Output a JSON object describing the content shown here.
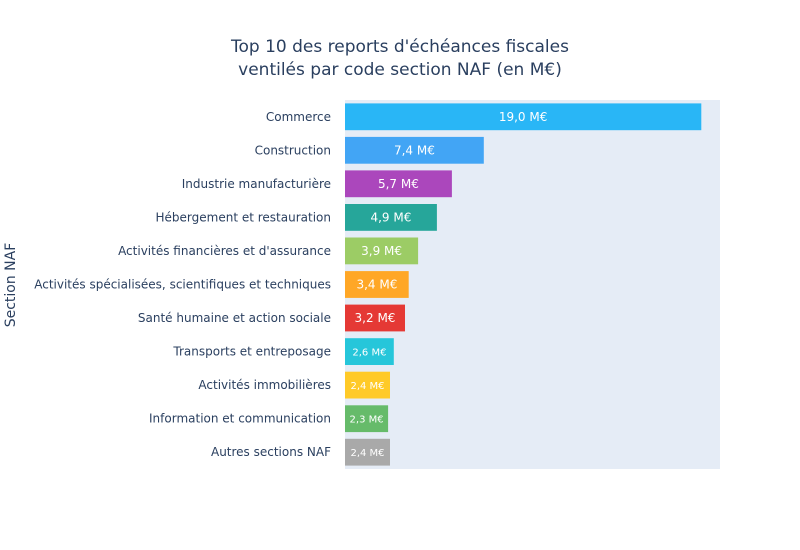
{
  "chart_data": {
    "type": "bar",
    "orientation": "horizontal",
    "title_lines": [
      "Top 10 des reports d'échéances fiscales",
      "ventilés par code section NAF (en M€)"
    ],
    "ylabel": "Section NAF",
    "xlabel": "",
    "xlim": [
      0,
      20
    ],
    "grid": false,
    "categories": [
      "Commerce",
      "Construction",
      "Industrie manufacturière",
      "Hébergement et restauration",
      "Activités financières et d'assurance",
      "Activités spécialisées, scientifiques et techniques",
      "Santé humaine et action sociale",
      "Transports et entreposage",
      "Activités immobilières",
      "Information et communication",
      "Autres sections NAF"
    ],
    "values": [
      19.0,
      7.4,
      5.7,
      4.9,
      3.9,
      3.4,
      3.2,
      2.6,
      2.4,
      2.3,
      2.4
    ],
    "data_labels": [
      "19,0 M€",
      "7,4 M€",
      "5,7 M€",
      "4,9 M€",
      "3,9 M€",
      "3,4 M€",
      "3,2 M€",
      "2,6 M€",
      "2,4 M€",
      "2,3 M€",
      "2,4 M€"
    ],
    "colors": [
      "#29b6f6",
      "#42a5f5",
      "#ab47bc",
      "#26a69a",
      "#9ccc65",
      "#ffa726",
      "#e53935",
      "#26c6da",
      "#ffca28",
      "#66bb6a",
      "#a9a9a9"
    ],
    "plot_background": "#e5ecf6"
  }
}
